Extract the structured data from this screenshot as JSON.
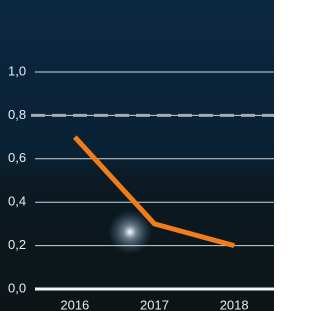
{
  "chart_data": {
    "type": "line",
    "categories": [
      "2016",
      "2017",
      "2018"
    ],
    "series": [
      {
        "color": "#f07c1a",
        "values": [
          0.7,
          0.3,
          0.2
        ]
      }
    ],
    "reference_line": 0.8,
    "ylim": [
      0,
      1
    ],
    "yticks": [
      {
        "value": 0,
        "label": "0,0"
      },
      {
        "value": 0.2,
        "label": "0,2"
      },
      {
        "value": 0.4,
        "label": "0,4"
      },
      {
        "value": 0.6,
        "label": "0,6"
      },
      {
        "value": 0.8,
        "label": "0,8"
      },
      {
        "value": 1,
        "label": "1,0"
      }
    ],
    "grid": true
  }
}
